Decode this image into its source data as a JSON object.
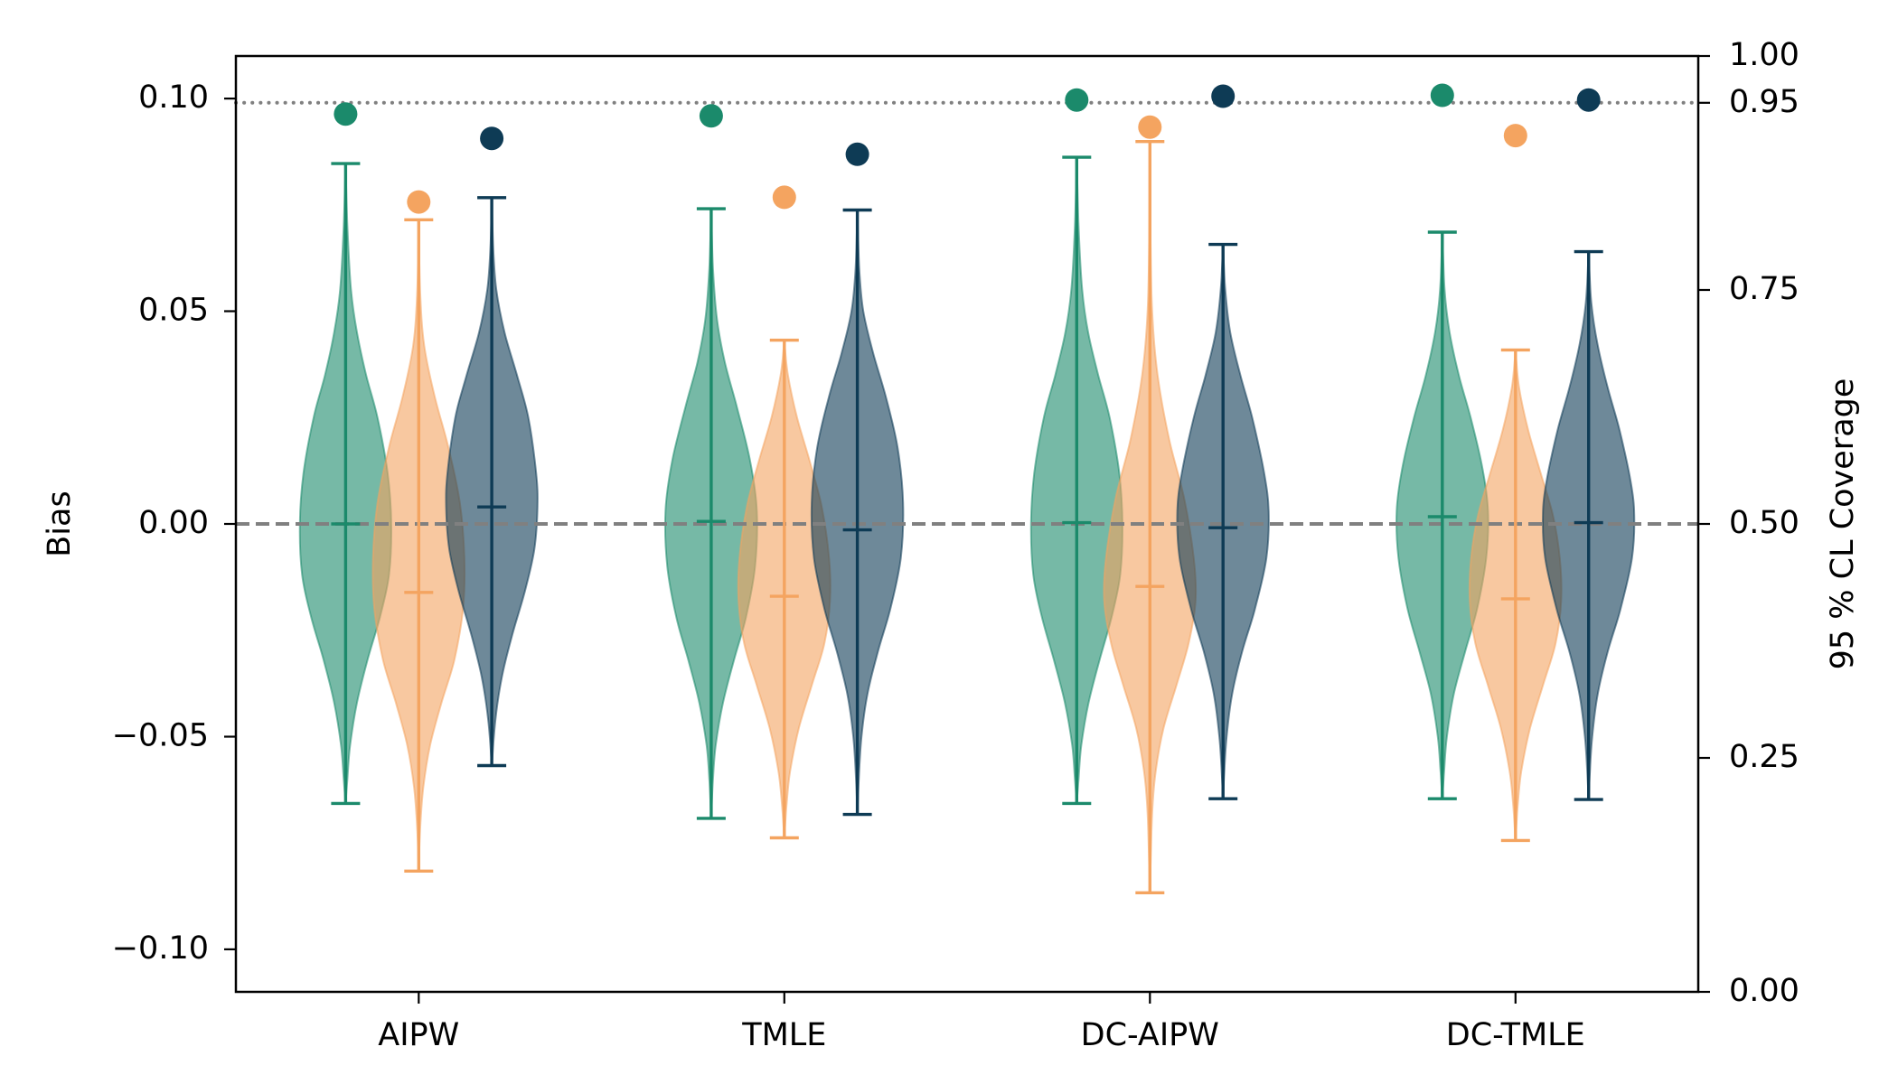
{
  "chart_data": {
    "type": "violin",
    "categories": [
      "AIPW",
      "TMLE",
      "DC-AIPW",
      "DC-TMLE"
    ],
    "y_left": {
      "label": "Bias",
      "range": [
        -0.11,
        0.11
      ],
      "ticks": [
        -0.1,
        -0.05,
        0,
        0.05,
        0.1
      ],
      "tick_labels": [
        "−0.10",
        "−0.05",
        "0.00",
        "0.05",
        "0.10"
      ]
    },
    "y_right": {
      "label": "95 % CL Coverage",
      "range": [
        0,
        1
      ],
      "ticks": [
        0,
        0.25,
        0.5,
        0.75,
        0.95,
        1.0
      ],
      "tick_labels": [
        "0.00",
        "0.25",
        "0.50",
        "0.75",
        "0.95",
        "1.00"
      ]
    },
    "reference_lines": [
      {
        "axis": "left",
        "value": 0,
        "style": "dashed",
        "color": "#808080"
      },
      {
        "axis": "right",
        "value": 0.95,
        "style": "dotted",
        "color": "#808080"
      }
    ],
    "grid": false,
    "legend": "none",
    "series": [
      {
        "color": "#1b8a6b",
        "coverage": [
          0.938,
          0.936,
          0.953,
          0.958
        ],
        "violins": [
          {
            "min": -0.0657,
            "max": 0.0847,
            "center": 0.0,
            "density": [
              [
                0.0847,
                0
              ],
              [
                0.07,
                0.04
              ],
              [
                0.055,
                0.12
              ],
              [
                0.045,
                0.25
              ],
              [
                0.035,
                0.45
              ],
              [
                0.025,
                0.7
              ],
              [
                0.012,
                0.92
              ],
              [
                0.0,
                1.0
              ],
              [
                -0.012,
                0.95
              ],
              [
                -0.022,
                0.75
              ],
              [
                -0.032,
                0.48
              ],
              [
                -0.042,
                0.25
              ],
              [
                -0.052,
                0.1
              ],
              [
                -0.06,
                0.04
              ],
              [
                -0.0657,
                0
              ]
            ]
          },
          {
            "min": -0.0692,
            "max": 0.0741,
            "center": 0.0006,
            "density": [
              [
                0.0741,
                0
              ],
              [
                0.06,
                0.04
              ],
              [
                0.048,
                0.13
              ],
              [
                0.038,
                0.3
              ],
              [
                0.028,
                0.55
              ],
              [
                0.015,
                0.85
              ],
              [
                0.003,
                1.0
              ],
              [
                -0.01,
                0.96
              ],
              [
                -0.022,
                0.76
              ],
              [
                -0.032,
                0.5
              ],
              [
                -0.042,
                0.26
              ],
              [
                -0.052,
                0.1
              ],
              [
                -0.06,
                0.04
              ],
              [
                -0.0692,
                0
              ]
            ]
          },
          {
            "min": -0.0657,
            "max": 0.0862,
            "center": 0.0003,
            "density": [
              [
                0.0862,
                0
              ],
              [
                0.07,
                0.04
              ],
              [
                0.055,
                0.12
              ],
              [
                0.045,
                0.25
              ],
              [
                0.035,
                0.47
              ],
              [
                0.025,
                0.72
              ],
              [
                0.012,
                0.93
              ],
              [
                0.0,
                1.0
              ],
              [
                -0.012,
                0.95
              ],
              [
                -0.022,
                0.76
              ],
              [
                -0.032,
                0.5
              ],
              [
                -0.042,
                0.26
              ],
              [
                -0.052,
                0.1
              ],
              [
                -0.06,
                0.04
              ],
              [
                -0.0657,
                0
              ]
            ]
          },
          {
            "min": -0.0646,
            "max": 0.0686,
            "center": 0.0017,
            "density": [
              [
                0.0686,
                0
              ],
              [
                0.055,
                0.05
              ],
              [
                0.045,
                0.16
              ],
              [
                0.035,
                0.36
              ],
              [
                0.025,
                0.62
              ],
              [
                0.013,
                0.88
              ],
              [
                0.003,
                1.0
              ],
              [
                -0.008,
                0.96
              ],
              [
                -0.02,
                0.76
              ],
              [
                -0.03,
                0.5
              ],
              [
                -0.04,
                0.25
              ],
              [
                -0.05,
                0.1
              ],
              [
                -0.058,
                0.04
              ],
              [
                -0.0646,
                0
              ]
            ]
          }
        ]
      },
      {
        "color": "#f4a460",
        "coverage": [
          0.844,
          0.849,
          0.924,
          0.915
        ],
        "violins": [
          {
            "min": -0.0816,
            "max": 0.0715,
            "center": -0.0161,
            "density": [
              [
                0.0715,
                0
              ],
              [
                0.055,
                0.03
              ],
              [
                0.042,
                0.12
              ],
              [
                0.03,
                0.35
              ],
              [
                0.018,
                0.65
              ],
              [
                0.005,
                0.9
              ],
              [
                -0.008,
                1.0
              ],
              [
                -0.02,
                0.97
              ],
              [
                -0.032,
                0.78
              ],
              [
                -0.042,
                0.5
              ],
              [
                -0.052,
                0.25
              ],
              [
                -0.062,
                0.1
              ],
              [
                -0.072,
                0.03
              ],
              [
                -0.0816,
                0
              ]
            ]
          },
          {
            "min": -0.0738,
            "max": 0.0432,
            "center": -0.017,
            "density": [
              [
                0.0432,
                0
              ],
              [
                0.035,
                0.08
              ],
              [
                0.025,
                0.28
              ],
              [
                0.015,
                0.55
              ],
              [
                0.004,
                0.82
              ],
              [
                -0.008,
                0.98
              ],
              [
                -0.018,
                1.0
              ],
              [
                -0.028,
                0.88
              ],
              [
                -0.038,
                0.6
              ],
              [
                -0.048,
                0.32
              ],
              [
                -0.058,
                0.13
              ],
              [
                -0.066,
                0.05
              ],
              [
                -0.0738,
                0
              ]
            ]
          },
          {
            "min": -0.0867,
            "max": 0.0899,
            "center": -0.0147,
            "density": [
              [
                0.0899,
                0
              ],
              [
                0.07,
                0.01
              ],
              [
                0.05,
                0.05
              ],
              [
                0.035,
                0.17
              ],
              [
                0.02,
                0.42
              ],
              [
                0.006,
                0.75
              ],
              [
                -0.008,
                0.96
              ],
              [
                -0.018,
                1.0
              ],
              [
                -0.028,
                0.85
              ],
              [
                -0.038,
                0.58
              ],
              [
                -0.048,
                0.3
              ],
              [
                -0.058,
                0.13
              ],
              [
                -0.068,
                0.05
              ],
              [
                -0.0867,
                0
              ]
            ]
          },
          {
            "min": -0.0744,
            "max": 0.0409,
            "center": -0.0176,
            "density": [
              [
                0.0409,
                0
              ],
              [
                0.032,
                0.08
              ],
              [
                0.022,
                0.28
              ],
              [
                0.012,
                0.55
              ],
              [
                0.002,
                0.82
              ],
              [
                -0.008,
                0.97
              ],
              [
                -0.018,
                1.0
              ],
              [
                -0.028,
                0.88
              ],
              [
                -0.038,
                0.6
              ],
              [
                -0.048,
                0.32
              ],
              [
                -0.058,
                0.13
              ],
              [
                -0.066,
                0.05
              ],
              [
                -0.0744,
                0
              ]
            ]
          }
        ]
      },
      {
        "color": "#0e3b55",
        "coverage": [
          0.912,
          0.895,
          0.957,
          0.953
        ],
        "violins": [
          {
            "min": -0.0568,
            "max": 0.0767,
            "center": 0.004,
            "density": [
              [
                0.0767,
                0
              ],
              [
                0.065,
                0.03
              ],
              [
                0.055,
                0.1
              ],
              [
                0.045,
                0.28
              ],
              [
                0.035,
                0.55
              ],
              [
                0.025,
                0.8
              ],
              [
                0.012,
                0.97
              ],
              [
                0.004,
                1.0
              ],
              [
                -0.006,
                0.93
              ],
              [
                -0.016,
                0.72
              ],
              [
                -0.026,
                0.45
              ],
              [
                -0.036,
                0.22
              ],
              [
                -0.046,
                0.08
              ],
              [
                -0.0568,
                0
              ]
            ]
          },
          {
            "min": -0.0683,
            "max": 0.0738,
            "center": -0.0014,
            "density": [
              [
                0.0738,
                0
              ],
              [
                0.06,
                0.04
              ],
              [
                0.05,
                0.13
              ],
              [
                0.04,
                0.35
              ],
              [
                0.03,
                0.62
              ],
              [
                0.018,
                0.88
              ],
              [
                0.005,
                1.0
              ],
              [
                -0.008,
                0.95
              ],
              [
                -0.02,
                0.72
              ],
              [
                -0.03,
                0.45
              ],
              [
                -0.04,
                0.22
              ],
              [
                -0.05,
                0.09
              ],
              [
                -0.06,
                0.03
              ],
              [
                -0.0683,
                0
              ]
            ]
          },
          {
            "min": -0.0646,
            "max": 0.0657,
            "center": -0.0009,
            "density": [
              [
                0.0657,
                0
              ],
              [
                0.055,
                0.05
              ],
              [
                0.045,
                0.16
              ],
              [
                0.035,
                0.38
              ],
              [
                0.025,
                0.64
              ],
              [
                0.012,
                0.9
              ],
              [
                0.003,
                1.0
              ],
              [
                -0.008,
                0.95
              ],
              [
                -0.02,
                0.7
              ],
              [
                -0.03,
                0.42
              ],
              [
                -0.04,
                0.2
              ],
              [
                -0.05,
                0.08
              ],
              [
                -0.058,
                0.03
              ],
              [
                -0.0646,
                0
              ]
            ]
          },
          {
            "min": -0.0648,
            "max": 0.064,
            "center": 0.0003,
            "density": [
              [
                0.064,
                0
              ],
              [
                0.052,
                0.06
              ],
              [
                0.042,
                0.2
              ],
              [
                0.032,
                0.42
              ],
              [
                0.022,
                0.68
              ],
              [
                0.01,
                0.92
              ],
              [
                0.002,
                1.0
              ],
              [
                -0.008,
                0.95
              ],
              [
                -0.02,
                0.7
              ],
              [
                -0.03,
                0.42
              ],
              [
                -0.04,
                0.2
              ],
              [
                -0.05,
                0.08
              ],
              [
                -0.058,
                0.03
              ],
              [
                -0.0648,
                0
              ]
            ]
          }
        ]
      }
    ]
  }
}
